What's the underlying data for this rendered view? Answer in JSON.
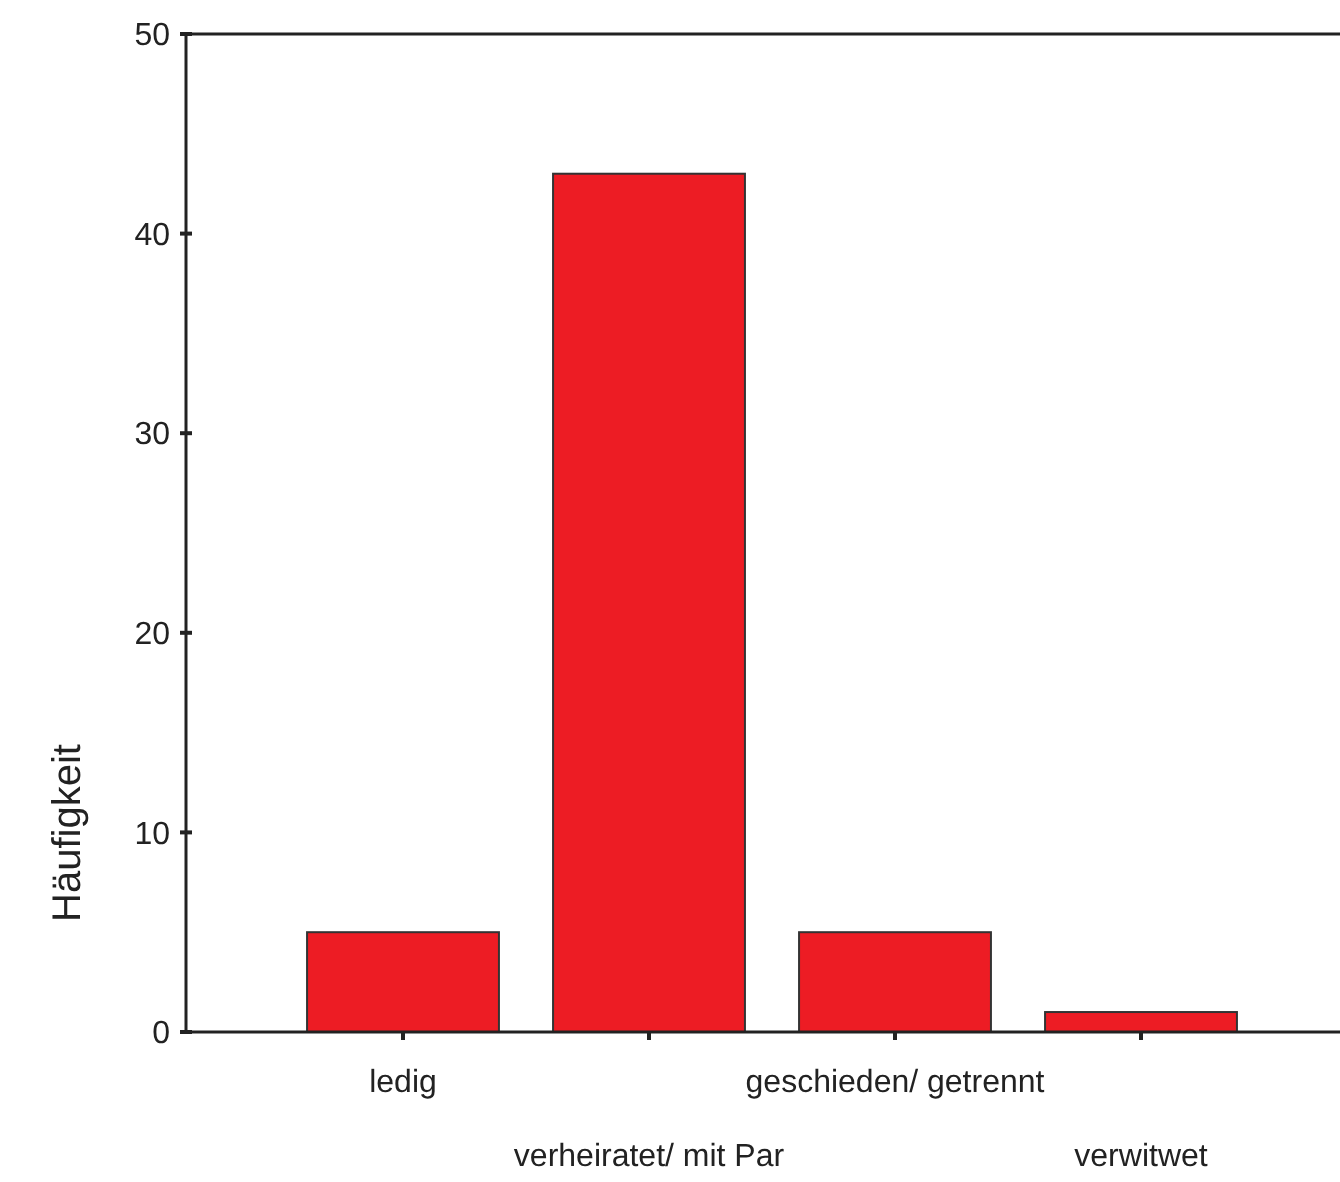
{
  "chart_data": {
    "type": "bar",
    "ylabel": "Häufigkeit",
    "categories": [
      "ledig",
      "verheiratet/ mit Par",
      "geschieden/ getrennt",
      "verwitwet"
    ],
    "values": [
      5,
      43,
      5,
      1
    ],
    "color": "#ed1c24",
    "ylim": [
      0,
      50
    ],
    "yticks": [
      0,
      10,
      20,
      30,
      40,
      50
    ]
  }
}
